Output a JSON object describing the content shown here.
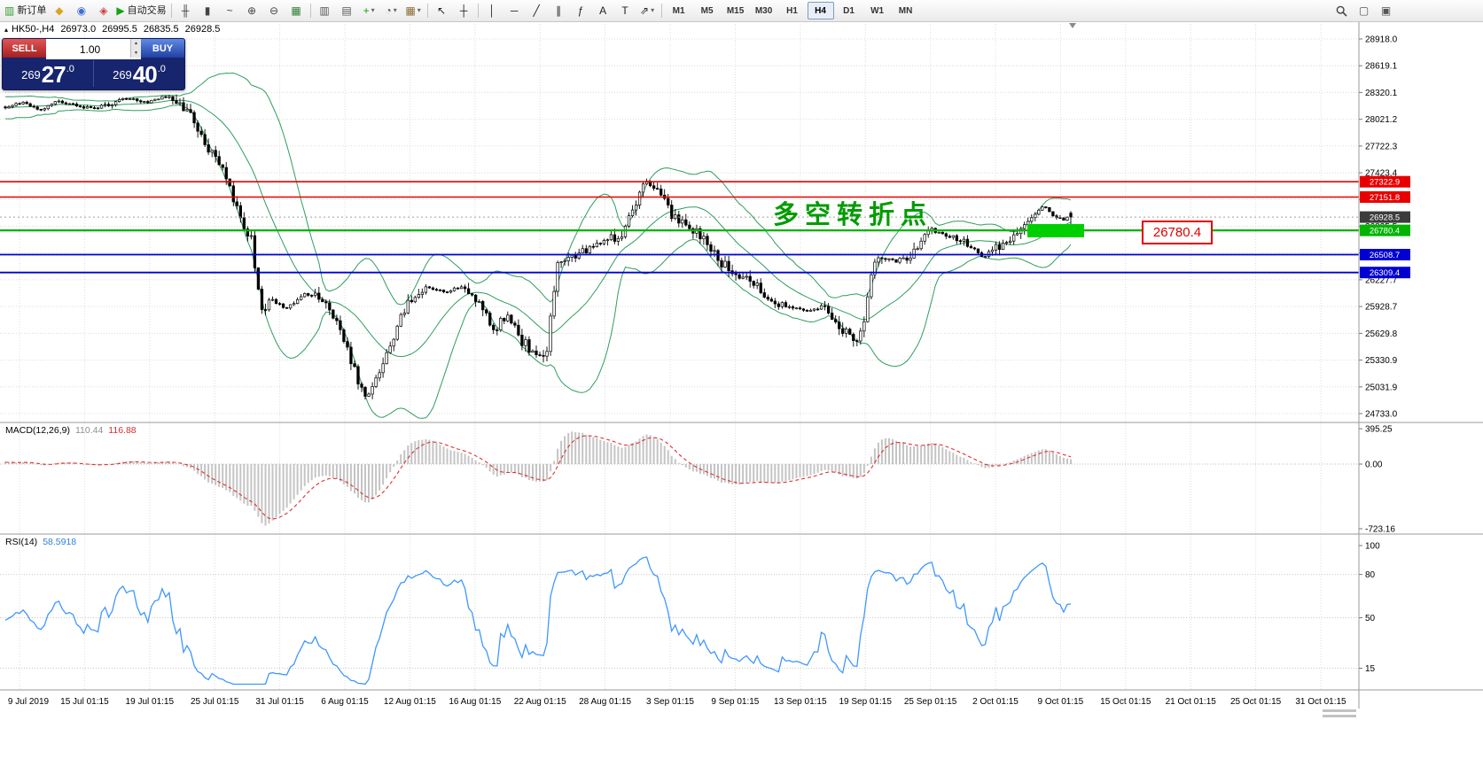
{
  "toolbar": {
    "new_order_label": "新订单",
    "autotrading_label": "自动交易",
    "timeframes": [
      "M1",
      "M5",
      "M15",
      "M30",
      "H1",
      "H4",
      "D1",
      "W1",
      "MN"
    ],
    "active_timeframe": "H4",
    "items": [
      {
        "name": "new-order-button",
        "glyph": "▥",
        "color": "#2e9b2e",
        "label_key": "new_order_label"
      },
      {
        "name": "metaeditor-button",
        "glyph": "◆",
        "color": "#d9a520"
      },
      {
        "name": "profiles-button",
        "glyph": "◉",
        "color": "#3a6fd8"
      },
      {
        "name": "market-watch-button",
        "glyph": "◈",
        "color": "#c94040"
      },
      {
        "name": "autotrading-button",
        "glyph": "▶",
        "color": "#18a018",
        "label_key": "autotrading_label"
      },
      {
        "type": "sep"
      },
      {
        "name": "bars-mode-button",
        "glyph": "╫",
        "color": "#444444"
      },
      {
        "name": "candles-mode-button",
        "glyph": "▮",
        "color": "#444444"
      },
      {
        "name": "line-mode-button",
        "glyph": "~",
        "color": "#444444"
      },
      {
        "name": "zoom-in-button",
        "glyph": "⊕",
        "color": "#444444"
      },
      {
        "name": "zoom-out-button",
        "glyph": "⊖",
        "color": "#444444"
      },
      {
        "name": "tile-windows-button",
        "glyph": "▦",
        "color": "#2e7d32"
      },
      {
        "type": "sep"
      },
      {
        "name": "auto-scroll-button",
        "glyph": "▥",
        "color": "#555555"
      },
      {
        "name": "chart-shift-button",
        "glyph": "▤",
        "color": "#555555"
      },
      {
        "name": "indicators-button",
        "glyph": "+",
        "color": "#18a018",
        "dropdown": true
      },
      {
        "name": "periods-button",
        "glyph": "◔",
        "color": "#555555",
        "dropdown": true
      },
      {
        "name": "templates-button",
        "glyph": "▦",
        "color": "#8a6a30",
        "dropdown": true
      },
      {
        "type": "sep"
      },
      {
        "name": "cursor-button",
        "glyph": "↖",
        "color": "#222222"
      },
      {
        "name": "crosshair-button",
        "glyph": "┼",
        "color": "#222222"
      },
      {
        "type": "sep"
      },
      {
        "name": "vertical-line-button",
        "glyph": "│",
        "color": "#222222"
      },
      {
        "name": "horizontal-line-button",
        "glyph": "─",
        "color": "#222222"
      },
      {
        "name": "trendline-button",
        "glyph": "╱",
        "color": "#222222"
      },
      {
        "name": "channel-button",
        "glyph": "∥",
        "color": "#222222"
      },
      {
        "name": "fibonacci-button",
        "glyph": "ƒ",
        "color": "#222222"
      },
      {
        "name": "text-button",
        "glyph": "A",
        "color": "#222222"
      },
      {
        "name": "label-button",
        "glyph": "T",
        "color": "#222222"
      },
      {
        "name": "shapes-button",
        "glyph": "⇗",
        "color": "#222222",
        "dropdown": true
      },
      {
        "type": "sep"
      }
    ],
    "right_items": [
      {
        "name": "new-window-button",
        "glyph": "▢",
        "color": "#555555"
      },
      {
        "name": "window-list-button",
        "glyph": "▣",
        "color": "#555555"
      }
    ]
  },
  "icons": {
    "collapse": "▴",
    "spin_up": "▲",
    "spin_down": "▼",
    "caret": "▾"
  },
  "chart_header": {
    "symbol_period": "HK50-,H4",
    "open": "26973.0",
    "high": "26995.5",
    "low": "26835.5",
    "close": "26928.5"
  },
  "one_click": {
    "sell_label": "SELL",
    "buy_label": "BUY",
    "volume": "1.00",
    "sell_price": {
      "prefix": "269",
      "big": "27",
      "suffix": ".0"
    },
    "buy_price": {
      "prefix": "269",
      "big": "40",
      "suffix": ".0"
    }
  },
  "annotation": {
    "text": "多空转折点",
    "color": "#009c00"
  },
  "highlight": {
    "color": "#00cf00"
  },
  "price_flag": {
    "text": "26780.4",
    "color": "#e00000"
  },
  "macd": {
    "label": "MACD(12,26,9)",
    "value1": "110.44",
    "value2": "116.88"
  },
  "rsi": {
    "label": "RSI(14)",
    "value": "58.5918"
  },
  "chart_data": {
    "type": "candlestick",
    "symbol": "HK50-",
    "timeframe": "H4",
    "n_candles": 300,
    "last_ohlc": {
      "open": 26973.0,
      "high": 26995.5,
      "low": 26835.5,
      "close": 26928.5
    },
    "price_path": [
      [
        0.0,
        28160
      ],
      [
        0.017,
        28210
      ],
      [
        0.033,
        28120
      ],
      [
        0.05,
        28230
      ],
      [
        0.066,
        28170
      ],
      [
        0.083,
        28140
      ],
      [
        0.099,
        28200
      ],
      [
        0.116,
        28260
      ],
      [
        0.132,
        28210
      ],
      [
        0.149,
        28280
      ],
      [
        0.165,
        28190
      ],
      [
        0.174,
        28050
      ],
      [
        0.182,
        27880
      ],
      [
        0.19,
        27700
      ],
      [
        0.198,
        27560
      ],
      [
        0.207,
        27400
      ],
      [
        0.215,
        27120
      ],
      [
        0.223,
        26840
      ],
      [
        0.231,
        26700
      ],
      [
        0.24,
        25850
      ],
      [
        0.248,
        26020
      ],
      [
        0.264,
        25900
      ],
      [
        0.281,
        26080
      ],
      [
        0.298,
        26010
      ],
      [
        0.31,
        25750
      ],
      [
        0.322,
        25420
      ],
      [
        0.331,
        25100
      ],
      [
        0.339,
        24900
      ],
      [
        0.347,
        25080
      ],
      [
        0.36,
        25460
      ],
      [
        0.372,
        25850
      ],
      [
        0.384,
        26080
      ],
      [
        0.397,
        26140
      ],
      [
        0.413,
        26090
      ],
      [
        0.43,
        26160
      ],
      [
        0.446,
        25960
      ],
      [
        0.459,
        25640
      ],
      [
        0.471,
        25870
      ],
      [
        0.483,
        25560
      ],
      [
        0.496,
        25420
      ],
      [
        0.508,
        25360
      ],
      [
        0.517,
        26350
      ],
      [
        0.529,
        26480
      ],
      [
        0.546,
        26560
      ],
      [
        0.562,
        26640
      ],
      [
        0.579,
        26760
      ],
      [
        0.591,
        27060
      ],
      [
        0.599,
        27330
      ],
      [
        0.612,
        27220
      ],
      [
        0.624,
        26980
      ],
      [
        0.636,
        26840
      ],
      [
        0.653,
        26720
      ],
      [
        0.669,
        26450
      ],
      [
        0.686,
        26280
      ],
      [
        0.702,
        26180
      ],
      [
        0.719,
        25980
      ],
      [
        0.736,
        25930
      ],
      [
        0.752,
        25880
      ],
      [
        0.769,
        25940
      ],
      [
        0.785,
        25690
      ],
      [
        0.798,
        25570
      ],
      [
        0.806,
        25720
      ],
      [
        0.814,
        26380
      ],
      [
        0.822,
        26520
      ],
      [
        0.835,
        26430
      ],
      [
        0.851,
        26520
      ],
      [
        0.868,
        26790
      ],
      [
        0.884,
        26720
      ],
      [
        0.901,
        26640
      ],
      [
        0.917,
        26480
      ],
      [
        0.934,
        26610
      ],
      [
        0.95,
        26780
      ],
      [
        0.963,
        26950
      ],
      [
        0.975,
        27060
      ],
      [
        0.988,
        26890
      ],
      [
        1.0,
        26928.5
      ]
    ],
    "levels": [
      {
        "price": 27322.9,
        "label": "27322.9",
        "color": "#e80000",
        "width": 1.6
      },
      {
        "price": 27151.8,
        "label": "27151.8",
        "color": "#e80000",
        "width": 1.6
      },
      {
        "price": 26928.5,
        "label": "26928.5",
        "color": "#3c3c3c",
        "width": 1,
        "dashed": true
      },
      {
        "price": 26780.4,
        "label": "26780.4",
        "color": "#00b400",
        "width": 2.2
      },
      {
        "price": 26508.7,
        "label": "26508.7",
        "color": "#0000d2",
        "width": 1.8
      },
      {
        "price": 26309.4,
        "label": "26309.4",
        "color": "#0000d2",
        "width": 1.8
      }
    ],
    "price_axis": [
      28918.0,
      28619.1,
      28320.1,
      28021.2,
      27722.3,
      27423.4,
      27124.4,
      26825.5,
      26526.6,
      26227.7,
      25928.7,
      25629.8,
      25330.9,
      25031.9,
      24733.0
    ],
    "macd_axis": [
      395.25,
      0,
      -723.16
    ],
    "rsi_axis": [
      100,
      80,
      50,
      15
    ],
    "rsi_levels": [
      80,
      50,
      15
    ],
    "time_labels": [
      "9 Jul 2019",
      "15 Jul 01:15",
      "19 Jul 01:15",
      "25 Jul 01:15",
      "31 Jul 01:15",
      "6 Aug 01:15",
      "12 Aug 01:15",
      "16 Aug 01:15",
      "22 Aug 01:15",
      "28 Aug 01:15",
      "3 Sep 01:15",
      "9 Sep 01:15",
      "13 Sep 01:15",
      "19 Sep 01:15",
      "25 Sep 01:15",
      "2 Oct 01:15",
      "9 Oct 01:15",
      "15 Oct 01:15",
      "21 Oct 01:15",
      "25 Oct 01:15",
      "31 Oct 01:15"
    ]
  }
}
